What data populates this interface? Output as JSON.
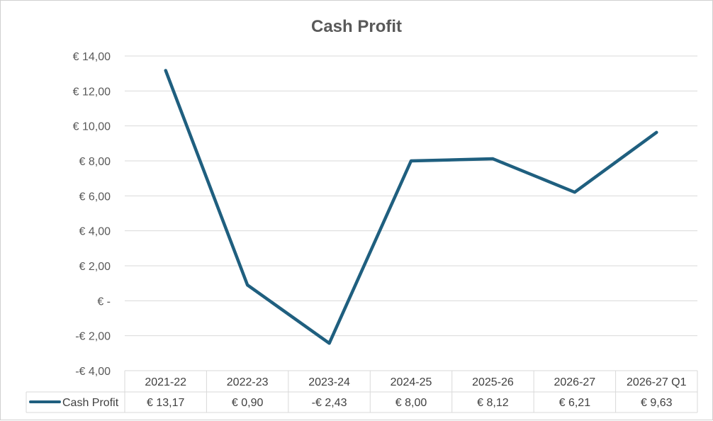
{
  "chart_data": {
    "type": "line",
    "title": "Cash Profit",
    "categories": [
      "2021-22",
      "2022-23",
      "2023-24",
      "2024-25",
      "2025-26",
      "2026-27",
      "2026-27 Q1"
    ],
    "series": [
      {
        "name": "Cash Profit",
        "values": [
          13.17,
          0.9,
          -2.43,
          8.0,
          8.12,
          6.21,
          9.63
        ],
        "value_labels": [
          "€ 13,17",
          "€ 0,90",
          "-€ 2,43",
          "€ 8,00",
          "€ 8,12",
          "€ 6,21",
          "€ 9,63"
        ],
        "color": "#1f5f7f"
      }
    ],
    "ylim": [
      -4,
      14
    ],
    "y_ticks": [
      14,
      12,
      10,
      8,
      6,
      4,
      2,
      0,
      -2,
      -4
    ],
    "y_tick_labels": [
      "€ 14,00",
      "€ 12,00",
      "€ 10,00",
      "€ 8,00",
      "€ 6,00",
      "€ 4,00",
      "€ 2,00",
      "€ -",
      "-€ 2,00",
      "-€ 4,00"
    ],
    "grid": true,
    "legend": "data-table",
    "gridline_color": "#d9d9d9"
  }
}
